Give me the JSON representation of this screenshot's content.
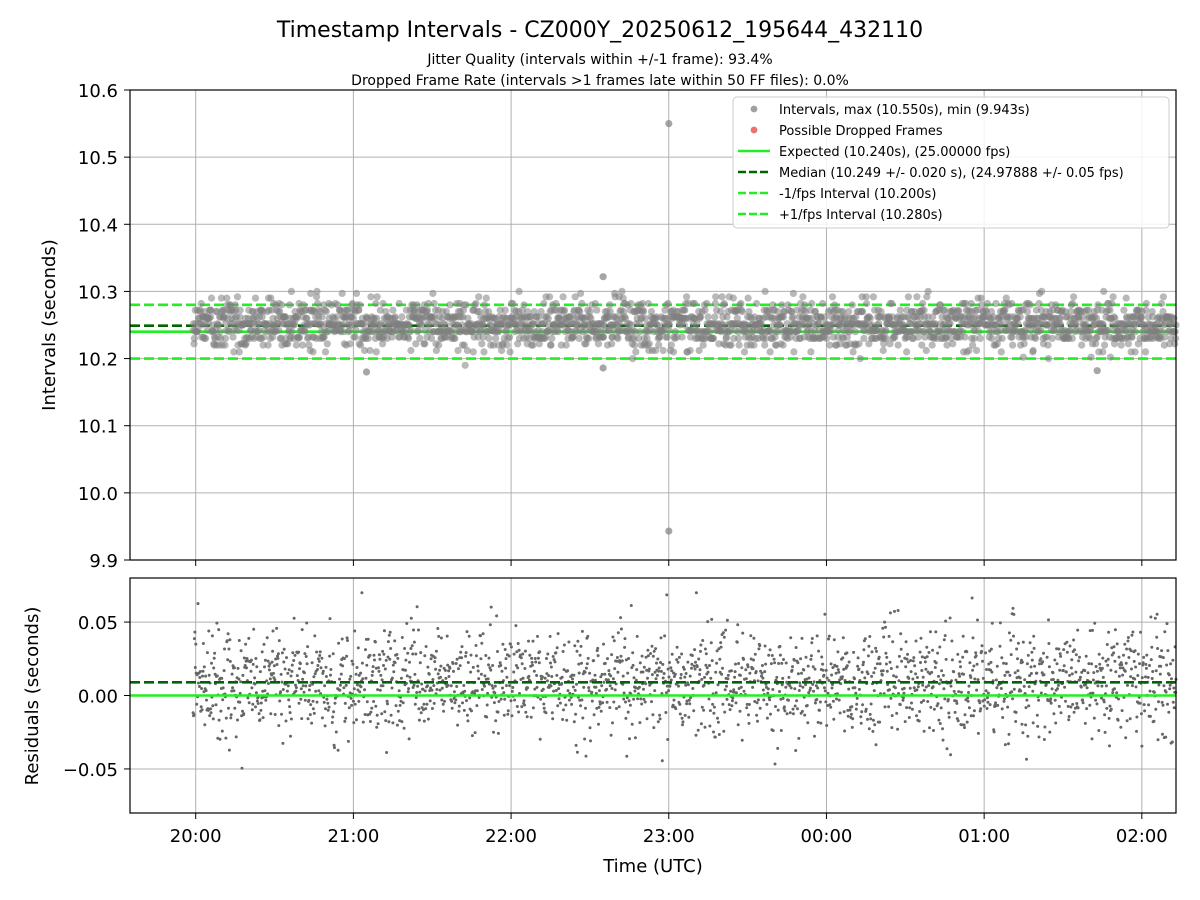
{
  "chart_data": [
    {
      "type": "scatter",
      "title": "Timestamp Intervals - CZ000Y_20250612_195644_432110",
      "subtitle_lines": [
        "Jitter Quality (intervals within +/-1 frame): 93.4%",
        "Dropped Frame Rate (intervals >1 frames late within 50 FF files): 0.0%"
      ],
      "xlabel": "",
      "ylabel": "Intervals (seconds)",
      "ylim": [
        9.9,
        10.6
      ],
      "yticks": [
        "10.6",
        "10.5",
        "10.4",
        "10.3",
        "10.2",
        "10.1",
        "10.0",
        "9.9"
      ],
      "xlim": [
        "19:35",
        "02:13"
      ],
      "xticks": [
        "20:00",
        "21:00",
        "22:00",
        "23:00",
        "00:00",
        "01:00",
        "02:00"
      ],
      "grid": true,
      "legend_position": "top-right",
      "legend": [
        {
          "label": "Intervals, max (10.550s), min (9.943s)",
          "kind": "dot",
          "color": "#a0a0a0"
        },
        {
          "label": "Possible Dropped Frames",
          "kind": "dot",
          "color": "#f07070"
        },
        {
          "label": "Expected (10.240s), (25.00000 fps)",
          "kind": "solid",
          "color": "#22ee22"
        },
        {
          "label": "Median (10.249 +/- 0.020 s), (24.97888 +/- 0.05 fps)",
          "kind": "dashed",
          "color": "#006400"
        },
        {
          "label": "-1/fps Interval (10.200s)",
          "kind": "dashed",
          "color": "#22ee22"
        },
        {
          "label": "+1/fps Interval (10.280s)",
          "kind": "dashed",
          "color": "#22ee22"
        }
      ],
      "series": [
        {
          "kind": "scatter",
          "x_range": [
            "19:59",
            "02:13"
          ],
          "approx_point_count": 2190,
          "y_center": 10.249,
          "y_spread_std": 0.02,
          "y_typical_range": [
            10.19,
            10.3
          ],
          "outliers": [
            {
              "x": "23:00",
              "y": 10.55
            },
            {
              "x": "23:00",
              "y": 9.943
            },
            {
              "x": "22:35",
              "y": 10.322
            },
            {
              "x": "22:35",
              "y": 10.186
            },
            {
              "x": "21:05",
              "y": 10.18
            },
            {
              "x": "01:43",
              "y": 10.182
            }
          ]
        }
      ],
      "reference_lines": [
        {
          "y": 10.24,
          "style": "solid",
          "color": "#22ee22"
        },
        {
          "y": 10.249,
          "style": "dashed",
          "color": "#006400"
        },
        {
          "y": 10.2,
          "style": "dashed",
          "color": "#22ee22"
        },
        {
          "y": 10.28,
          "style": "dashed",
          "color": "#22ee22"
        }
      ]
    },
    {
      "type": "scatter",
      "title": "",
      "xlabel": "Time (UTC)",
      "ylabel": "Residuals (seconds)",
      "ylim": [
        -0.08,
        0.08
      ],
      "yticks": [
        {
          "value": 0.05,
          "label": "0.05"
        },
        {
          "value": 0.0,
          "label": "0.00"
        },
        {
          "value": -0.05,
          "label": "−0.05"
        }
      ],
      "xlim": [
        "19:35",
        "02:13"
      ],
      "xticks": [
        "20:00",
        "21:00",
        "22:00",
        "23:00",
        "00:00",
        "01:00",
        "02:00"
      ],
      "grid": true,
      "series": [
        {
          "kind": "scatter",
          "x_range": [
            "19:59",
            "02:13"
          ],
          "approx_point_count": 2190,
          "y_center": 0.009,
          "y_spread_std": 0.02,
          "y_typical_range": [
            -0.06,
            0.07
          ]
        }
      ],
      "reference_lines": [
        {
          "y": 0.0,
          "style": "solid",
          "color": "#22ee22"
        },
        {
          "y": 0.009,
          "style": "dashed",
          "color": "#006400"
        }
      ]
    }
  ]
}
